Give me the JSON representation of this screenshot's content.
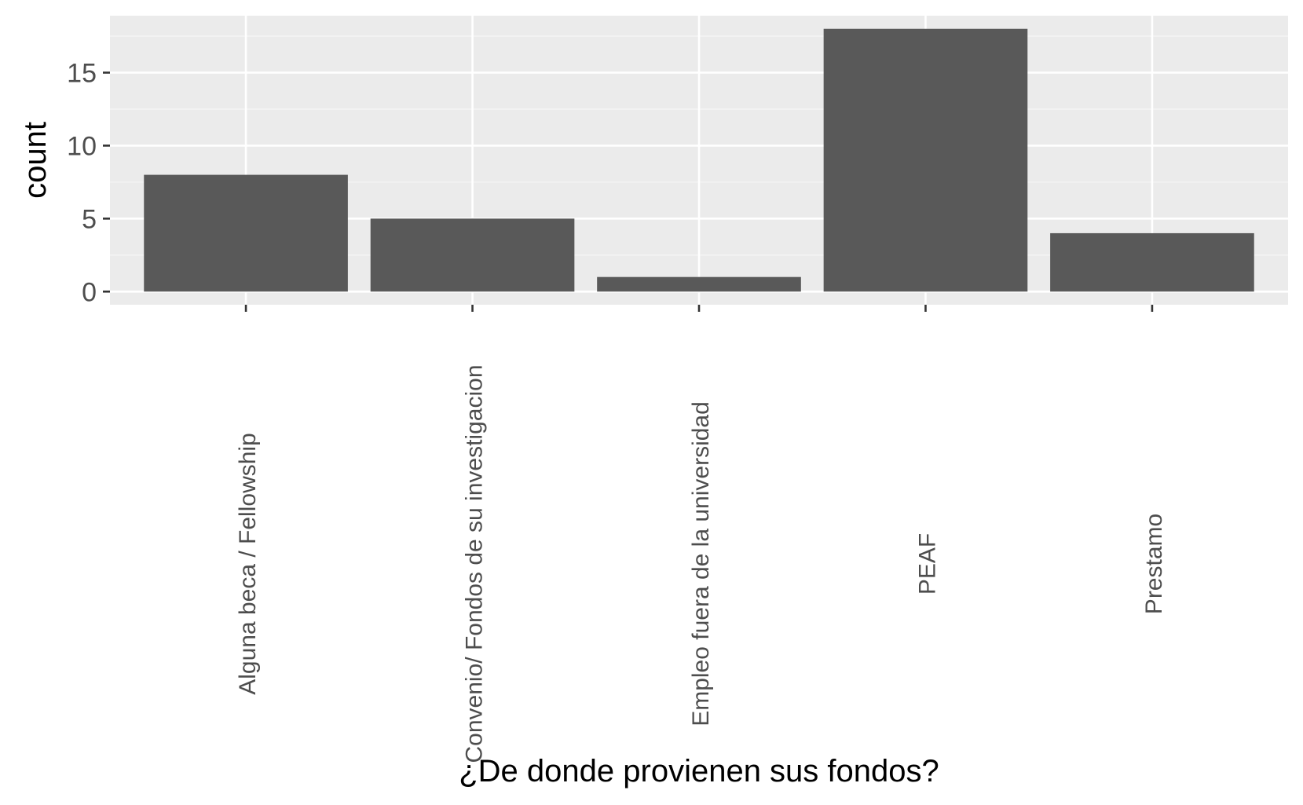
{
  "chart_data": {
    "type": "bar",
    "categories": [
      "Alguna beca / Fellowship",
      "Convenio/ Fondos de su investigacion",
      "Empleo fuera de la universidad",
      "PEAF",
      "Prestamo"
    ],
    "values": [
      8,
      5,
      1,
      18,
      4
    ],
    "title": "",
    "xlabel": "¿De donde provienen sus fondos?",
    "ylabel": "count",
    "ylim": [
      -0.9,
      18.9
    ],
    "yticks": [
      0,
      5,
      10,
      15
    ],
    "ytick_labels": [
      "0",
      "5",
      "10",
      "15"
    ],
    "grid": true,
    "legend": "none"
  },
  "colors": {
    "panel_background": "#ebebeb",
    "grid_major": "#ffffff",
    "grid_minor": "#f5f5f5",
    "bar_fill": "#595959",
    "tick_mark": "#333333",
    "tick_label": "#4d4d4d",
    "axis_title": "#000000"
  }
}
